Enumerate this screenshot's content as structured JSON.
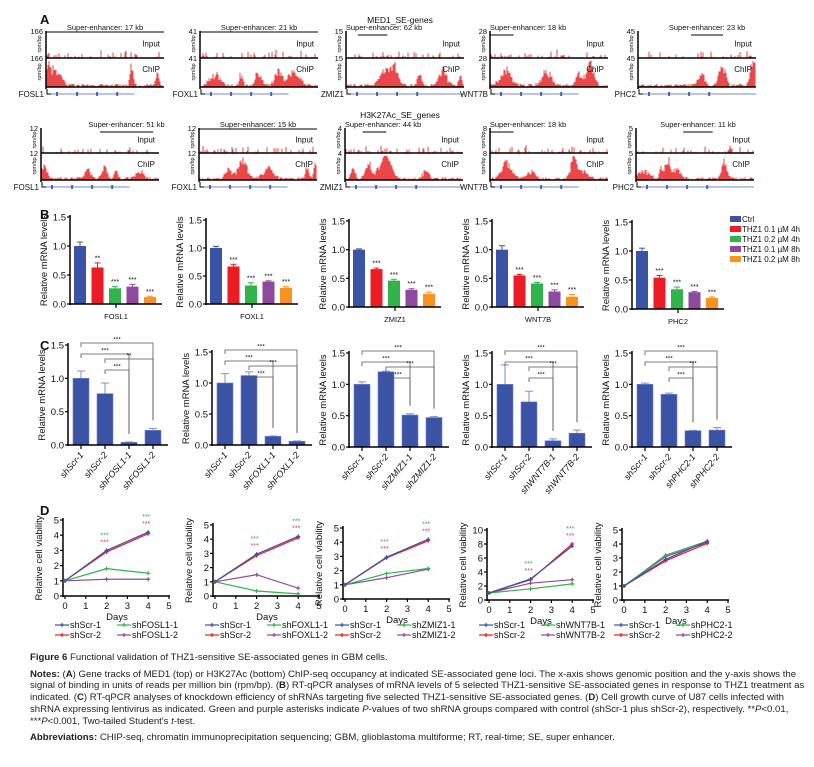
{
  "figure": {
    "panel_labels": [
      "A",
      "B",
      "C",
      "D"
    ],
    "a": {
      "titles": [
        "MED1_SE-genes",
        "H3K27Ac_SE_genes"
      ],
      "input_label": "Input",
      "chip_label": "ChIP",
      "y_unit": "rpm/bp",
      "rows": [
        [
          {
            "gene": "FOSL1",
            "ymax": "166",
            "se": "Super-enhancer: 17 kb"
          },
          {
            "gene": "FOXL1",
            "ymax": "41",
            "se": "Super-enhancer: 21 kb"
          },
          {
            "gene": "ZMIZ1",
            "ymax": "15",
            "se": "Super-enhancer: 62 kb"
          },
          {
            "gene": "WNT7B",
            "ymax": "28",
            "se": "Super-enhancer: 18 kb"
          },
          {
            "gene": "PHC2",
            "ymax": "45",
            "se": "Super-enhancer: 23 kb"
          }
        ],
        [
          {
            "gene": "FOSL1",
            "ymax": "12",
            "se": "Super-enhancer: 51 kb"
          },
          {
            "gene": "FOXL1",
            "ymax": "12",
            "se": "Super-enhancer: 15 kb"
          },
          {
            "gene": "ZMIZ1",
            "ymax": "4",
            "se": "Super-enhancer: 44 kb"
          },
          {
            "gene": "WNT7B",
            "ymax": "8",
            "se": "Super-enhancer: 18 kb"
          },
          {
            "gene": "PHC2",
            "ymax": "5",
            "se": "Super-enhancer: 11 kb"
          }
        ]
      ],
      "colors": {
        "signal": "#e41a1c",
        "gene_model": "#4a5fc1"
      }
    },
    "b_legend": [
      "Ctrl",
      "THZ1 0.1 µM 4h",
      "THZ1 0.2 µM 4h",
      "THZ1 0.1 µM 8h",
      "THZ1 0.2 µM 8h"
    ],
    "b_colors": [
      "#3a53a4",
      "#ed1c24",
      "#2fb34a",
      "#8e4a9f",
      "#f7931e"
    ],
    "c_color": "#3a53a4",
    "d_colors": [
      "#3a53a4",
      "#ed1c24",
      "#2fb34a",
      "#8e4a9f"
    ],
    "d_sig_colors": [
      "#2fb34a",
      "#e0338a"
    ]
  },
  "chart_data": [
    {
      "panel": "B",
      "type": "bar",
      "xlabel": "FOSL1",
      "ylabel": "Relative mRNA levels",
      "ylim": [
        0,
        1.5
      ],
      "yticks": [
        "0.0",
        "0.5",
        "1.0",
        "1.5"
      ],
      "values": [
        1.0,
        0.63,
        0.27,
        0.3,
        0.12
      ],
      "errors": [
        0.06,
        0.07,
        0.02,
        0.03,
        0.005
      ],
      "sig": [
        "",
        "**",
        "***",
        "***",
        "***"
      ]
    },
    {
      "panel": "B",
      "type": "bar",
      "xlabel": "FOXL1",
      "ylabel": "Relative mRNA levels",
      "ylim": [
        0,
        1.5
      ],
      "yticks": [
        "0.0",
        "0.5",
        "1.0",
        "1.5"
      ],
      "values": [
        1.0,
        0.67,
        0.33,
        0.4,
        0.29
      ],
      "errors": [
        0.02,
        0.03,
        0.04,
        0.005,
        0.01
      ],
      "sig": [
        "",
        "***",
        "***",
        "***",
        "***"
      ]
    },
    {
      "panel": "B",
      "type": "bar",
      "xlabel": "ZMIZ1",
      "ylabel": "Relative mRNA levels",
      "ylim": [
        0,
        1.5
      ],
      "yticks": [
        "0.0",
        "0.5",
        "1.0",
        "1.5"
      ],
      "values": [
        1.0,
        0.66,
        0.46,
        0.3,
        0.23
      ],
      "errors": [
        0.005,
        0.01,
        0.015,
        0.01,
        0.02
      ],
      "sig": [
        "",
        "***",
        "***",
        "***",
        "***"
      ]
    },
    {
      "panel": "B",
      "type": "bar",
      "xlabel": "WNT7B",
      "ylabel": "Relative mRNA levels",
      "ylim": [
        0,
        1.5
      ],
      "yticks": [
        "0.0",
        "0.5",
        "1.0",
        "1.5"
      ],
      "values": [
        1.0,
        0.55,
        0.41,
        0.27,
        0.18
      ],
      "errors": [
        0.06,
        0.01,
        0.01,
        0.02,
        0.03
      ],
      "sig": [
        "",
        "***",
        "***",
        "***",
        "***"
      ]
    },
    {
      "panel": "B",
      "type": "bar",
      "xlabel": "PHC2",
      "ylabel": "Relative mRNA levels",
      "ylim": [
        0,
        1.5
      ],
      "yticks": [
        "0.0",
        "0.5",
        "1.0",
        "1.5"
      ],
      "values": [
        1.0,
        0.54,
        0.34,
        0.29,
        0.19
      ],
      "errors": [
        0.04,
        0.03,
        0.03,
        0.005,
        0.01
      ],
      "sig": [
        "",
        "***",
        "***",
        "***",
        "***"
      ]
    },
    {
      "panel": "C",
      "type": "bar",
      "ylabel": "Relative mRNA levels",
      "ylim": [
        0,
        1.5
      ],
      "yticks": [
        "0.0",
        "0.5",
        "1.0",
        "1.5"
      ],
      "categories": [
        "shScr-1",
        "shScr-2",
        "shFOSL1-1",
        "shFOSL1-2"
      ],
      "values": [
        1.0,
        0.77,
        0.04,
        0.22
      ],
      "errors": [
        0.11,
        0.16,
        0.005,
        0.03
      ],
      "comparisons": [
        {
          "from": 0,
          "to": 3,
          "label": "***"
        },
        {
          "from": 0,
          "to": 2,
          "label": "***"
        },
        {
          "from": 1,
          "to": 3,
          "label": "**"
        },
        {
          "from": 1,
          "to": 2,
          "label": "***"
        }
      ]
    },
    {
      "panel": "C",
      "type": "bar",
      "ylabel": "Relative mRNA levels",
      "ylim": [
        0,
        1.5
      ],
      "yticks": [
        "0.0",
        "0.5",
        "1.0",
        "1.5"
      ],
      "categories": [
        "shScr-1",
        "shScr-2",
        "shFOXL1-1",
        "shFOXL1-2"
      ],
      "values": [
        1.0,
        1.12,
        0.14,
        0.06
      ],
      "errors": [
        0.15,
        0.06,
        0.005,
        0.005
      ],
      "comparisons": [
        {
          "from": 0,
          "to": 3,
          "label": "***"
        },
        {
          "from": 0,
          "to": 2,
          "label": "***"
        },
        {
          "from": 1,
          "to": 3,
          "label": "***"
        },
        {
          "from": 1,
          "to": 2,
          "label": "***"
        }
      ]
    },
    {
      "panel": "C",
      "type": "bar",
      "ylabel": "Relative mRNA levels",
      "ylim": [
        0,
        1.5
      ],
      "yticks": [
        "0.0",
        "0.5",
        "1.0",
        "1.5"
      ],
      "categories": [
        "shScr-1",
        "shScr-2",
        "shZMIZ1-1",
        "shZMIZ1-2"
      ],
      "values": [
        1.0,
        1.2,
        0.51,
        0.47
      ],
      "errors": [
        0.04,
        0.01,
        0.02,
        0.015
      ],
      "comparisons": [
        {
          "from": 0,
          "to": 3,
          "label": "***"
        },
        {
          "from": 0,
          "to": 2,
          "label": "***"
        },
        {
          "from": 1,
          "to": 3,
          "label": "***"
        },
        {
          "from": 1,
          "to": 2,
          "label": "***"
        }
      ]
    },
    {
      "panel": "C",
      "type": "bar",
      "ylabel": "Relative mRNA levels",
      "ylim": [
        0,
        1.5
      ],
      "yticks": [
        "0.0",
        "0.5",
        "1.0",
        "1.5"
      ],
      "categories": [
        "shScr-1",
        "shScr-2",
        "shWNT7B-1",
        "shWNT7B-2"
      ],
      "values": [
        1.0,
        0.72,
        0.1,
        0.22
      ],
      "errors": [
        0.31,
        0.17,
        0.03,
        0.05
      ],
      "comparisons": [
        {
          "from": 0,
          "to": 3,
          "label": "***"
        },
        {
          "from": 0,
          "to": 2,
          "label": "***"
        },
        {
          "from": 1,
          "to": 3,
          "label": "***"
        },
        {
          "from": 1,
          "to": 2,
          "label": "***"
        }
      ]
    },
    {
      "panel": "C",
      "type": "bar",
      "ylabel": "Relative mRNA levels",
      "ylim": [
        0,
        1.5
      ],
      "yticks": [
        "0.0",
        "0.5",
        "1.0",
        "1.5"
      ],
      "categories": [
        "shScr-1",
        "shScr-2",
        "shPHC2-1",
        "shPHC2-2"
      ],
      "values": [
        1.0,
        0.84,
        0.26,
        0.27
      ],
      "errors": [
        0.02,
        0.02,
        0.005,
        0.04
      ],
      "comparisons": [
        {
          "from": 0,
          "to": 3,
          "label": "***"
        },
        {
          "from": 0,
          "to": 2,
          "label": "***"
        },
        {
          "from": 1,
          "to": 3,
          "label": "***"
        },
        {
          "from": 1,
          "to": 2,
          "label": "***"
        }
      ]
    },
    {
      "panel": "D",
      "type": "line",
      "xlabel": "Days",
      "ylabel": "Relative cell viability",
      "xlim": [
        0,
        5
      ],
      "ylim": [
        0,
        5
      ],
      "xticks": [
        "0",
        "1",
        "2",
        "3",
        "4",
        "5"
      ],
      "yticks": [
        "0",
        "1",
        "2",
        "3",
        "4",
        "5"
      ],
      "x": [
        0,
        2,
        4
      ],
      "series": [
        {
          "name": "shScr-1",
          "values": [
            1,
            3.0,
            4.2
          ]
        },
        {
          "name": "shScr-2",
          "values": [
            1,
            2.9,
            4.1
          ]
        },
        {
          "name": "shFOSL1-1",
          "values": [
            1,
            1.8,
            1.5
          ]
        },
        {
          "name": "shFOSL1-2",
          "values": [
            1,
            1.1,
            1.1
          ]
        }
      ],
      "sig_days": [
        2,
        4
      ],
      "sig_label": "***"
    },
    {
      "panel": "D",
      "type": "line",
      "xlabel": "Days",
      "ylabel": "Relative cell viability",
      "xlim": [
        0,
        5
      ],
      "ylim": [
        0,
        5
      ],
      "xticks": [
        "0",
        "1",
        "2",
        "3",
        "4",
        "5"
      ],
      "yticks": [
        "0",
        "1",
        "2",
        "3",
        "4",
        "5"
      ],
      "x": [
        0,
        2,
        4
      ],
      "series": [
        {
          "name": "shScr-1",
          "values": [
            1,
            2.95,
            4.2
          ]
        },
        {
          "name": "shScr-2",
          "values": [
            1,
            2.85,
            4.1
          ]
        },
        {
          "name": "shFOXL1-1",
          "values": [
            1,
            0.35,
            0.15
          ]
        },
        {
          "name": "shFOXL1-2",
          "values": [
            1,
            1.5,
            0.55
          ]
        }
      ],
      "sig_days": [
        2,
        4
      ],
      "sig_label": "***"
    },
    {
      "panel": "D",
      "type": "line",
      "xlabel": "Days",
      "ylabel": "Relative cell viability",
      "xlim": [
        0,
        5
      ],
      "ylim": [
        0,
        5
      ],
      "xticks": [
        "0",
        "1",
        "2",
        "3",
        "4",
        "5"
      ],
      "yticks": [
        "0",
        "1",
        "2",
        "3",
        "4",
        "5"
      ],
      "x": [
        0,
        2,
        4
      ],
      "series": [
        {
          "name": "shScr-1",
          "values": [
            1,
            2.95,
            4.2
          ]
        },
        {
          "name": "shScr-2",
          "values": [
            1,
            2.9,
            4.1
          ]
        },
        {
          "name": "shZMIZ1-1",
          "values": [
            1,
            1.8,
            2.15
          ]
        },
        {
          "name": "shZMIZ1-2",
          "values": [
            1,
            1.5,
            2.1
          ]
        }
      ],
      "sig_days": [
        2,
        4
      ],
      "sig_label": "***"
    },
    {
      "panel": "D",
      "type": "line",
      "xlabel": "Days",
      "ylabel": "Relative cell viability",
      "xlim": [
        0,
        5
      ],
      "ylim": [
        0,
        10
      ],
      "xticks": [
        "0",
        "1",
        "2",
        "3",
        "4",
        "5"
      ],
      "yticks": [
        "0",
        "2",
        "4",
        "6",
        "8",
        "10"
      ],
      "x": [
        0,
        2,
        4
      ],
      "series": [
        {
          "name": "shScr-1",
          "values": [
            1,
            3.0,
            7.7
          ]
        },
        {
          "name": "shScr-2",
          "values": [
            1,
            2.9,
            8.0
          ]
        },
        {
          "name": "shWNT7B-1",
          "values": [
            1,
            1.6,
            2.3
          ]
        },
        {
          "name": "shWNT7B-2",
          "values": [
            1,
            2.4,
            2.9
          ]
        }
      ],
      "sig_days": [
        2,
        4
      ],
      "sig_label": "***"
    },
    {
      "panel": "D",
      "type": "line",
      "xlabel": "Days",
      "ylabel": "Relative cell viability",
      "xlim": [
        0,
        5
      ],
      "ylim": [
        0,
        5
      ],
      "xticks": [
        "0",
        "1",
        "2",
        "3",
        "4",
        "5"
      ],
      "yticks": [
        "0",
        "1",
        "2",
        "3",
        "4",
        "5"
      ],
      "x": [
        0,
        2,
        4
      ],
      "series": [
        {
          "name": "shScr-1",
          "values": [
            1,
            2.9,
            4.2
          ]
        },
        {
          "name": "shScr-2",
          "values": [
            1,
            2.8,
            4.05
          ]
        },
        {
          "name": "shPHC2-1",
          "values": [
            1,
            3.2,
            4.2
          ]
        },
        {
          "name": "shPHC2-2",
          "values": [
            1,
            3.1,
            4.1
          ]
        }
      ],
      "sig_days": [],
      "sig_label": "***"
    }
  ],
  "caption": {
    "title": [
      {
        "text": "Figure 6",
        "style": "b"
      },
      {
        "text": " Functional validation of THZ1-sensitive SE-associated genes in GBM cells.",
        "style": ""
      }
    ],
    "notes": [
      {
        "text": "Notes: ",
        "style": "b"
      },
      {
        "text": "(",
        "style": ""
      },
      {
        "text": "A",
        "style": "b"
      },
      {
        "text": ") Gene tracks of MED1 (top) or H3K27Ac (bottom) ChIP-seq occupancy at indicated SE-associated gene loci. The x-axis shows genomic position and the y-axis shows the signal of binding in units of reads per million bin (rpm/bp). (",
        "style": ""
      },
      {
        "text": "B",
        "style": "b"
      },
      {
        "text": ") RT-qPCR analyses of mRNA levels of 5 selected THZ1-sensitive SE-associated genes in response to THZ1 treatment as indicated. (",
        "style": ""
      },
      {
        "text": "C",
        "style": "b"
      },
      {
        "text": ") RT-qPCR analyses of knockdown efficiency of shRNAs targeting five selected THZ1-sensitive SE-associated genes. (",
        "style": ""
      },
      {
        "text": "D",
        "style": "b"
      },
      {
        "text": ") Cell growth curve of U87 cells infected with shRNA expressing lentivirus as indicated. Green and purple asterisks indicate ",
        "style": ""
      },
      {
        "text": "P",
        "style": "i"
      },
      {
        "text": "-values of two shRNA groups compared with control (shScr-1 plus shScr-2), respectively. **",
        "style": ""
      },
      {
        "text": "P",
        "style": "i"
      },
      {
        "text": "<0.01, ***",
        "style": ""
      },
      {
        "text": "P",
        "style": "i"
      },
      {
        "text": "<0.001, Two-tailed Student's ",
        "style": ""
      },
      {
        "text": "t",
        "style": "i"
      },
      {
        "text": "-test.",
        "style": ""
      }
    ],
    "abbreviations": [
      {
        "text": "Abbreviations: ",
        "style": "b"
      },
      {
        "text": "CHIP-seq, chromatin immunoprecipitation sequencing; GBM, glioblastoma multiforme; RT, real-time; SE, super enhancer.",
        "style": ""
      }
    ]
  }
}
